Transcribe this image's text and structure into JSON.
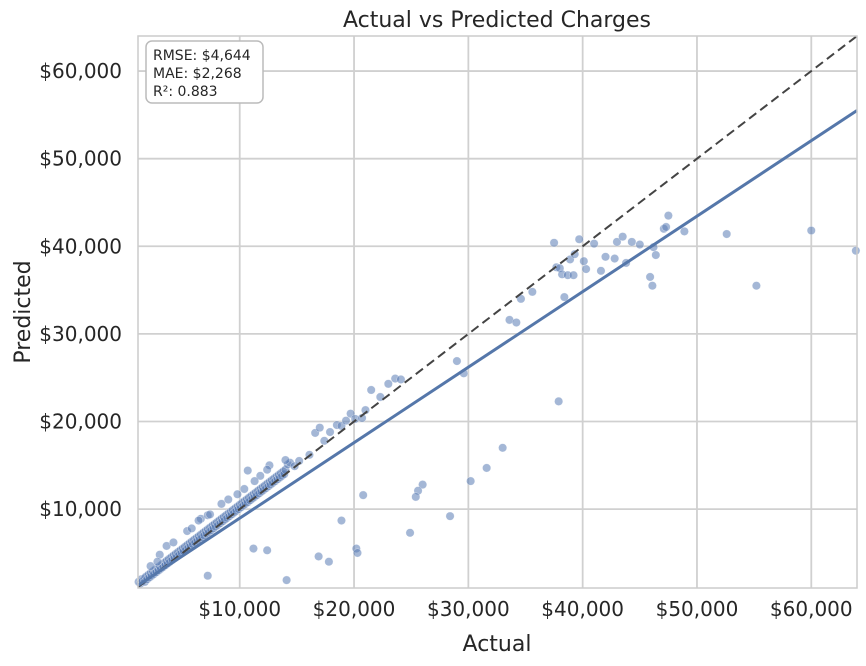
{
  "chart_data": {
    "type": "scatter",
    "title": "Actual vs Predicted Charges",
    "xlabel": "Actual",
    "ylabel": "Predicted",
    "xlim": [
      1100,
      64000
    ],
    "ylim": [
      1000,
      64000
    ],
    "x_ticks": [
      10000,
      20000,
      30000,
      40000,
      50000,
      60000
    ],
    "x_tick_labels": [
      "$10,000",
      "$20,000",
      "$30,000",
      "$40,000",
      "$50,000",
      "$60,000"
    ],
    "y_ticks": [
      10000,
      20000,
      30000,
      40000,
      50000,
      60000
    ],
    "y_tick_labels": [
      "$10,000",
      "$20,000",
      "$30,000",
      "$40,000",
      "$50,000",
      "$60,000"
    ],
    "grid": true,
    "stats": {
      "rmse": "RMSE: $4,644",
      "mae": "MAE: $2,268",
      "r2": "R²: 0.883"
    },
    "reference_line": {
      "style": "dashed",
      "color": "#444444",
      "from": [
        1100,
        1100
      ],
      "to": [
        64000,
        64000
      ]
    },
    "fit_line": {
      "color": "#5577aa",
      "from": [
        1100,
        1300
      ],
      "to": [
        64000,
        55500
      ]
    },
    "point_color": "#5a7bb5",
    "points": [
      [
        1150,
        1700
      ],
      [
        1300,
        1500
      ],
      [
        1400,
        2000
      ],
      [
        1500,
        1800
      ],
      [
        1650,
        2100
      ],
      [
        1700,
        1700
      ],
      [
        1800,
        2300
      ],
      [
        1900,
        2000
      ],
      [
        2000,
        2500
      ],
      [
        2100,
        2200
      ],
      [
        2200,
        2700
      ],
      [
        2300,
        2400
      ],
      [
        2400,
        2900
      ],
      [
        2500,
        2600
      ],
      [
        2600,
        3100
      ],
      [
        2700,
        2800
      ],
      [
        2800,
        3300
      ],
      [
        2900,
        3000
      ],
      [
        3000,
        3500
      ],
      [
        3100,
        3200
      ],
      [
        3200,
        3700
      ],
      [
        3300,
        3400
      ],
      [
        3400,
        3900
      ],
      [
        3500,
        3600
      ],
      [
        3600,
        4100
      ],
      [
        3700,
        3800
      ],
      [
        3800,
        4300
      ],
      [
        3900,
        4000
      ],
      [
        4000,
        4500
      ],
      [
        4100,
        4200
      ],
      [
        4200,
        4700
      ],
      [
        4300,
        4400
      ],
      [
        4400,
        4900
      ],
      [
        4500,
        4600
      ],
      [
        4600,
        5100
      ],
      [
        4700,
        4800
      ],
      [
        4800,
        5300
      ],
      [
        4900,
        5000
      ],
      [
        5000,
        5500
      ],
      [
        5100,
        5200
      ],
      [
        5200,
        5700
      ],
      [
        5300,
        5400
      ],
      [
        5400,
        5900
      ],
      [
        5500,
        5600
      ],
      [
        5600,
        6100
      ],
      [
        5700,
        5800
      ],
      [
        5800,
        6300
      ],
      [
        5900,
        6000
      ],
      [
        6000,
        6500
      ],
      [
        6100,
        6200
      ],
      [
        6200,
        6700
      ],
      [
        6300,
        6400
      ],
      [
        6400,
        6900
      ],
      [
        6500,
        6600
      ],
      [
        6600,
        7100
      ],
      [
        6700,
        6800
      ],
      [
        6800,
        7300
      ],
      [
        6900,
        7000
      ],
      [
        7000,
        7500
      ],
      [
        7100,
        7200
      ],
      [
        7200,
        7700
      ],
      [
        7300,
        7400
      ],
      [
        7400,
        7900
      ],
      [
        7500,
        7600
      ],
      [
        7600,
        8100
      ],
      [
        7700,
        7800
      ],
      [
        7800,
        8300
      ],
      [
        7900,
        8000
      ],
      [
        8000,
        8500
      ],
      [
        8100,
        8200
      ],
      [
        8200,
        8700
      ],
      [
        8300,
        8400
      ],
      [
        8400,
        8900
      ],
      [
        8500,
        8600
      ],
      [
        8600,
        9100
      ],
      [
        8700,
        8800
      ],
      [
        8800,
        9300
      ],
      [
        8900,
        9000
      ],
      [
        9000,
        9500
      ],
      [
        9100,
        9200
      ],
      [
        9200,
        9700
      ],
      [
        9300,
        9400
      ],
      [
        9400,
        9900
      ],
      [
        9500,
        9600
      ],
      [
        9600,
        10100
      ],
      [
        9700,
        9800
      ],
      [
        9800,
        10300
      ],
      [
        9900,
        10000
      ],
      [
        10000,
        10500
      ],
      [
        10100,
        10200
      ],
      [
        10200,
        10700
      ],
      [
        10300,
        10400
      ],
      [
        10400,
        10900
      ],
      [
        10500,
        10600
      ],
      [
        10600,
        11100
      ],
      [
        10700,
        10800
      ],
      [
        10800,
        11300
      ],
      [
        10900,
        11000
      ],
      [
        11000,
        11500
      ],
      [
        11100,
        11200
      ],
      [
        11200,
        11700
      ],
      [
        11300,
        11400
      ],
      [
        11400,
        11900
      ],
      [
        11500,
        11600
      ],
      [
        11600,
        12100
      ],
      [
        11700,
        11800
      ],
      [
        11800,
        12300
      ],
      [
        11900,
        12000
      ],
      [
        12000,
        12500
      ],
      [
        12100,
        12200
      ],
      [
        12200,
        12700
      ],
      [
        12300,
        12400
      ],
      [
        12400,
        12900
      ],
      [
        12500,
        12600
      ],
      [
        12600,
        13100
      ],
      [
        12700,
        12800
      ],
      [
        12800,
        13300
      ],
      [
        12900,
        13000
      ],
      [
        13000,
        13500
      ],
      [
        13100,
        13200
      ],
      [
        13200,
        13700
      ],
      [
        13300,
        13400
      ],
      [
        13400,
        13900
      ],
      [
        13500,
        13600
      ],
      [
        13600,
        14100
      ],
      [
        13700,
        13800
      ],
      [
        13800,
        14300
      ],
      [
        13900,
        14000
      ],
      [
        14000,
        14500
      ],
      [
        14200,
        15100
      ],
      [
        14400,
        15300
      ],
      [
        14000,
        15600
      ],
      [
        14800,
        14900
      ],
      [
        15200,
        15500
      ],
      [
        3000,
        4800
      ],
      [
        3600,
        5800
      ],
      [
        4200,
        6200
      ],
      [
        5400,
        7500
      ],
      [
        6600,
        8900
      ],
      [
        7200,
        9300
      ],
      [
        8400,
        10600
      ],
      [
        9000,
        11100
      ],
      [
        2200,
        3500
      ],
      [
        2800,
        4000
      ],
      [
        5800,
        7800
      ],
      [
        7400,
        9400
      ],
      [
        9800,
        11700
      ],
      [
        10400,
        12300
      ],
      [
        11800,
        13800
      ],
      [
        12600,
        15000
      ],
      [
        10700,
        14400
      ],
      [
        12400,
        14500
      ],
      [
        11300,
        13200
      ],
      [
        6400,
        8700
      ],
      [
        16100,
        16200
      ],
      [
        16600,
        18700
      ],
      [
        17000,
        19300
      ],
      [
        17400,
        17800
      ],
      [
        17900,
        18800
      ],
      [
        18500,
        19600
      ],
      [
        18900,
        19500
      ],
      [
        19300,
        20100
      ],
      [
        19700,
        20900
      ],
      [
        20100,
        20300
      ],
      [
        20700,
        20400
      ],
      [
        21000,
        21300
      ],
      [
        21500,
        23600
      ],
      [
        22300,
        22800
      ],
      [
        23000,
        24300
      ],
      [
        23600,
        24900
      ],
      [
        24100,
        24800
      ],
      [
        29000,
        26900
      ],
      [
        29600,
        25500
      ],
      [
        33600,
        31600
      ],
      [
        34200,
        31300
      ],
      [
        34600,
        34000
      ],
      [
        35600,
        34800
      ],
      [
        37500,
        40400
      ],
      [
        37700,
        37600
      ],
      [
        38000,
        37500
      ],
      [
        38200,
        36800
      ],
      [
        38400,
        34200
      ],
      [
        38700,
        36700
      ],
      [
        38900,
        38500
      ],
      [
        39200,
        36700
      ],
      [
        39300,
        39100
      ],
      [
        39700,
        40800
      ],
      [
        40300,
        37400
      ],
      [
        40100,
        38300
      ],
      [
        41000,
        40300
      ],
      [
        41600,
        37200
      ],
      [
        42000,
        38800
      ],
      [
        42800,
        38600
      ],
      [
        43000,
        40500
      ],
      [
        43500,
        41100
      ],
      [
        43800,
        38100
      ],
      [
        44300,
        40500
      ],
      [
        45000,
        40200
      ],
      [
        45900,
        36500
      ],
      [
        46100,
        35500
      ],
      [
        46200,
        39900
      ],
      [
        46400,
        39000
      ],
      [
        47100,
        42000
      ],
      [
        47300,
        42200
      ],
      [
        47500,
        43500
      ],
      [
        48900,
        41700
      ],
      [
        52600,
        41400
      ],
      [
        55200,
        35500
      ],
      [
        60000,
        41800
      ],
      [
        63900,
        39500
      ],
      [
        37900,
        22300
      ],
      [
        33000,
        17000
      ],
      [
        31600,
        14700
      ],
      [
        30200,
        13200
      ],
      [
        28400,
        9200
      ],
      [
        26000,
        12800
      ],
      [
        25600,
        12100
      ],
      [
        25400,
        11400
      ],
      [
        24900,
        7300
      ],
      [
        20800,
        11600
      ],
      [
        20200,
        5500
      ],
      [
        20300,
        5000
      ],
      [
        18900,
        8700
      ],
      [
        17800,
        4000
      ],
      [
        16900,
        4600
      ],
      [
        14100,
        1900
      ],
      [
        12400,
        5300
      ],
      [
        11200,
        5500
      ],
      [
        7200,
        2400
      ]
    ]
  }
}
